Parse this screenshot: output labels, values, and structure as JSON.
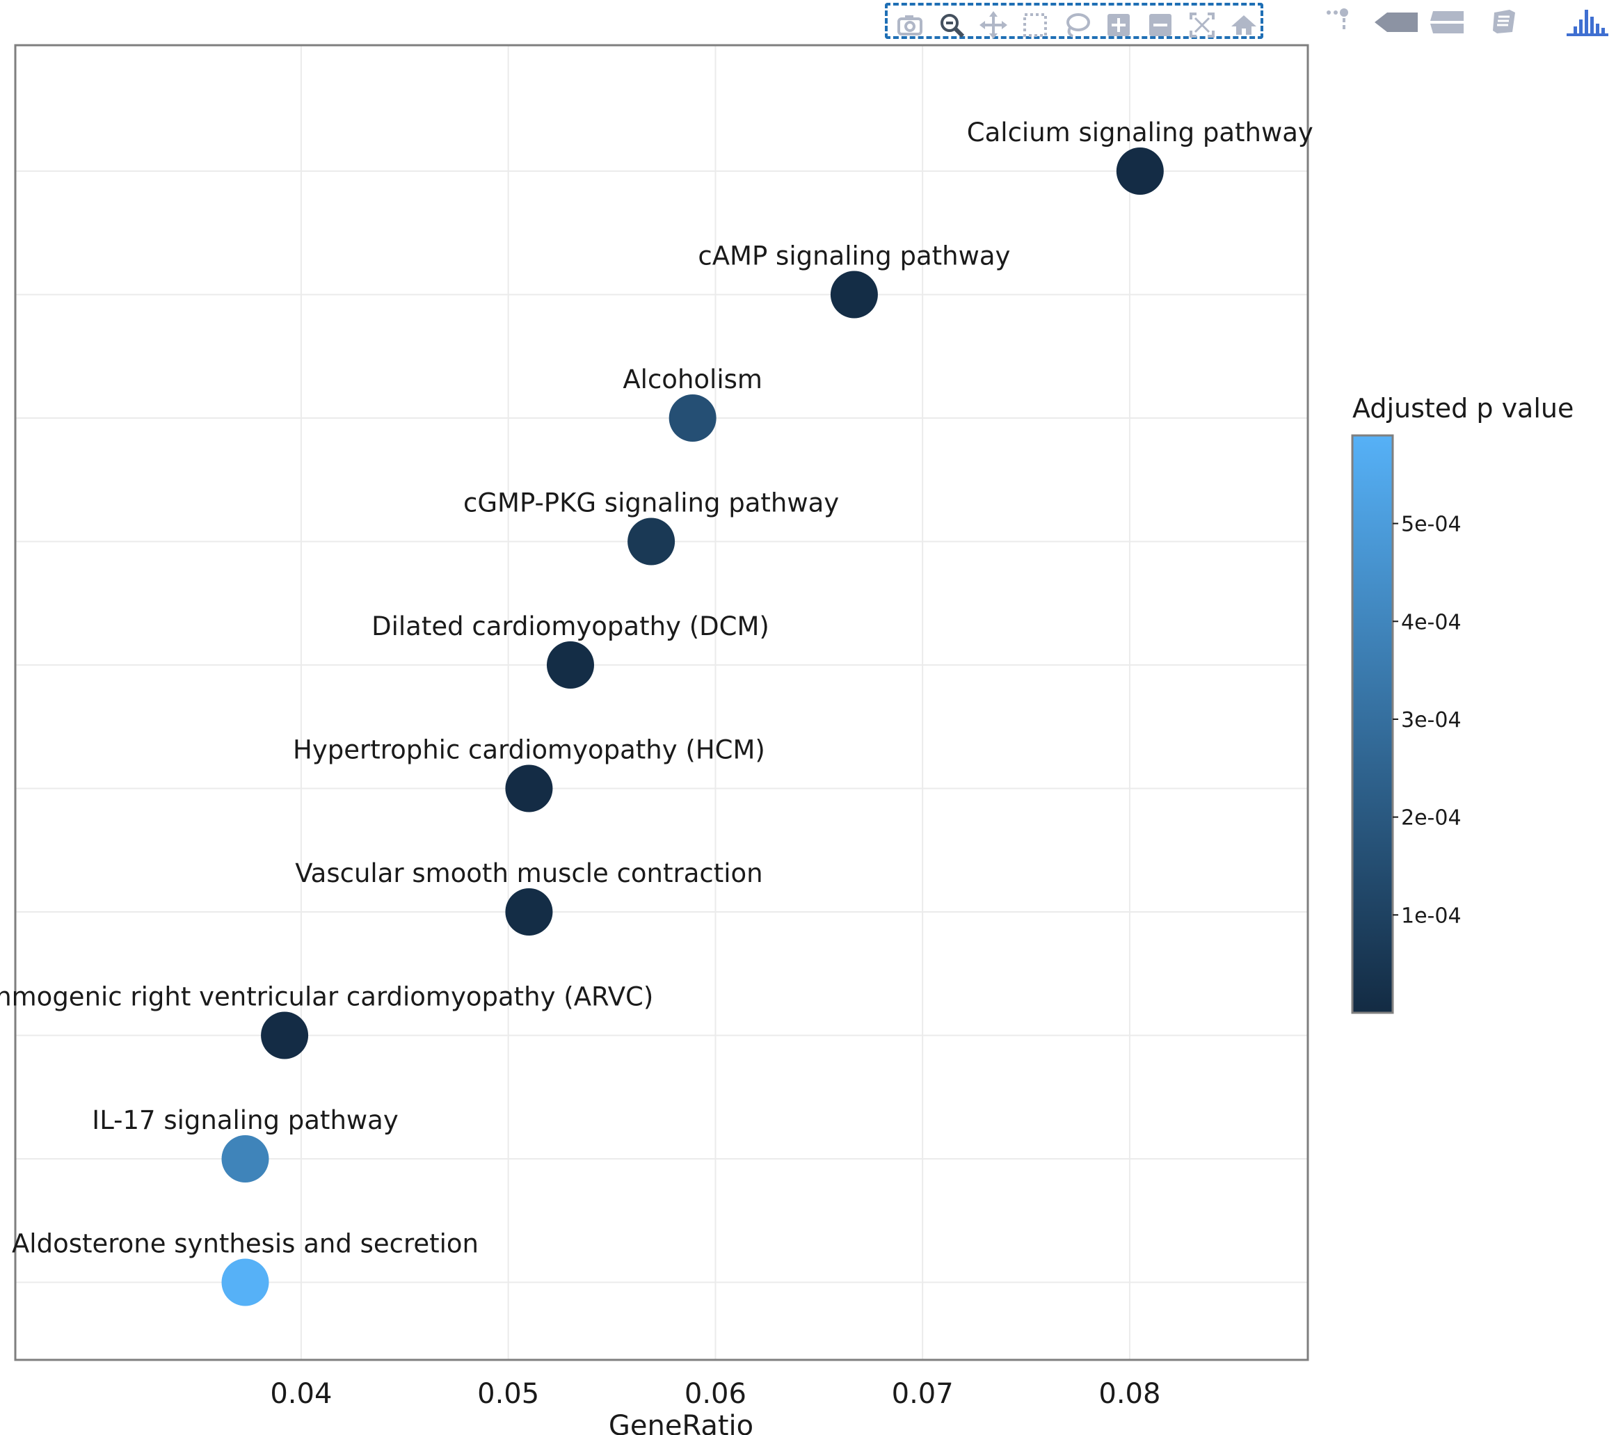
{
  "modebar": {
    "group_buttons": [
      "camera-icon",
      "zoom-icon",
      "pan-icon",
      "box-select-icon",
      "lasso-select-icon",
      "zoom-in-icon",
      "zoom-out-icon",
      "autoscale-icon",
      "reset-axes-icon"
    ],
    "extra_buttons": [
      "spike-lines-icon",
      "hover-closest-icon",
      "hover-compare-icon",
      "edit-chart-icon",
      "plotly-logo-icon"
    ]
  },
  "chart_data": {
    "type": "scatter",
    "title": "",
    "xlabel": "GeneRatio",
    "ylabel": "",
    "xlim": [
      0.0262,
      0.0886
    ],
    "xticks": [
      0.04,
      0.05,
      0.06,
      0.07,
      0.08
    ],
    "xtick_labels": [
      "0.04",
      "0.05",
      "0.06",
      "0.07",
      "0.08"
    ],
    "grid": true,
    "points": [
      {
        "label": "Calcium signaling pathway",
        "x": 0.0805,
        "p_adjust": 5e-06
      },
      {
        "label": "cAMP signaling pathway",
        "x": 0.0667,
        "p_adjust": 1e-05
      },
      {
        "label": "Alcoholism",
        "x": 0.0589,
        "p_adjust": 0.00016
      },
      {
        "label": "cGMP-PKG signaling pathway",
        "x": 0.0569,
        "p_adjust": 6e-05
      },
      {
        "label": "Dilated cardiomyopathy (DCM)",
        "x": 0.053,
        "p_adjust": 1e-05
      },
      {
        "label": "Hypertrophic cardiomyopathy (HCM)",
        "x": 0.051,
        "p_adjust": 5e-06
      },
      {
        "label": "Vascular smooth muscle contraction",
        "x": 0.051,
        "p_adjust": 1e-05
      },
      {
        "label": "Arrhythmogenic right ventricular cardiomyopathy (ARVC)",
        "x": 0.0392,
        "p_adjust": 5e-06
      },
      {
        "label": "IL-17 signaling pathway",
        "x": 0.0373,
        "p_adjust": 0.00039
      },
      {
        "label": "Aldosterone synthesis and secretion",
        "x": 0.0373,
        "p_adjust": 0.00059
      }
    ],
    "colorbar": {
      "title": "Adjusted p value",
      "range": [
        0.0,
        0.00059
      ],
      "ticks": [
        0.0001,
        0.0002,
        0.0003,
        0.0004,
        0.0005
      ],
      "tick_labels": [
        "1e-04",
        "2e-04",
        "3e-04",
        "4e-04",
        "5e-04"
      ],
      "color_low": "#132B43",
      "color_high": "#56B1F7"
    }
  }
}
